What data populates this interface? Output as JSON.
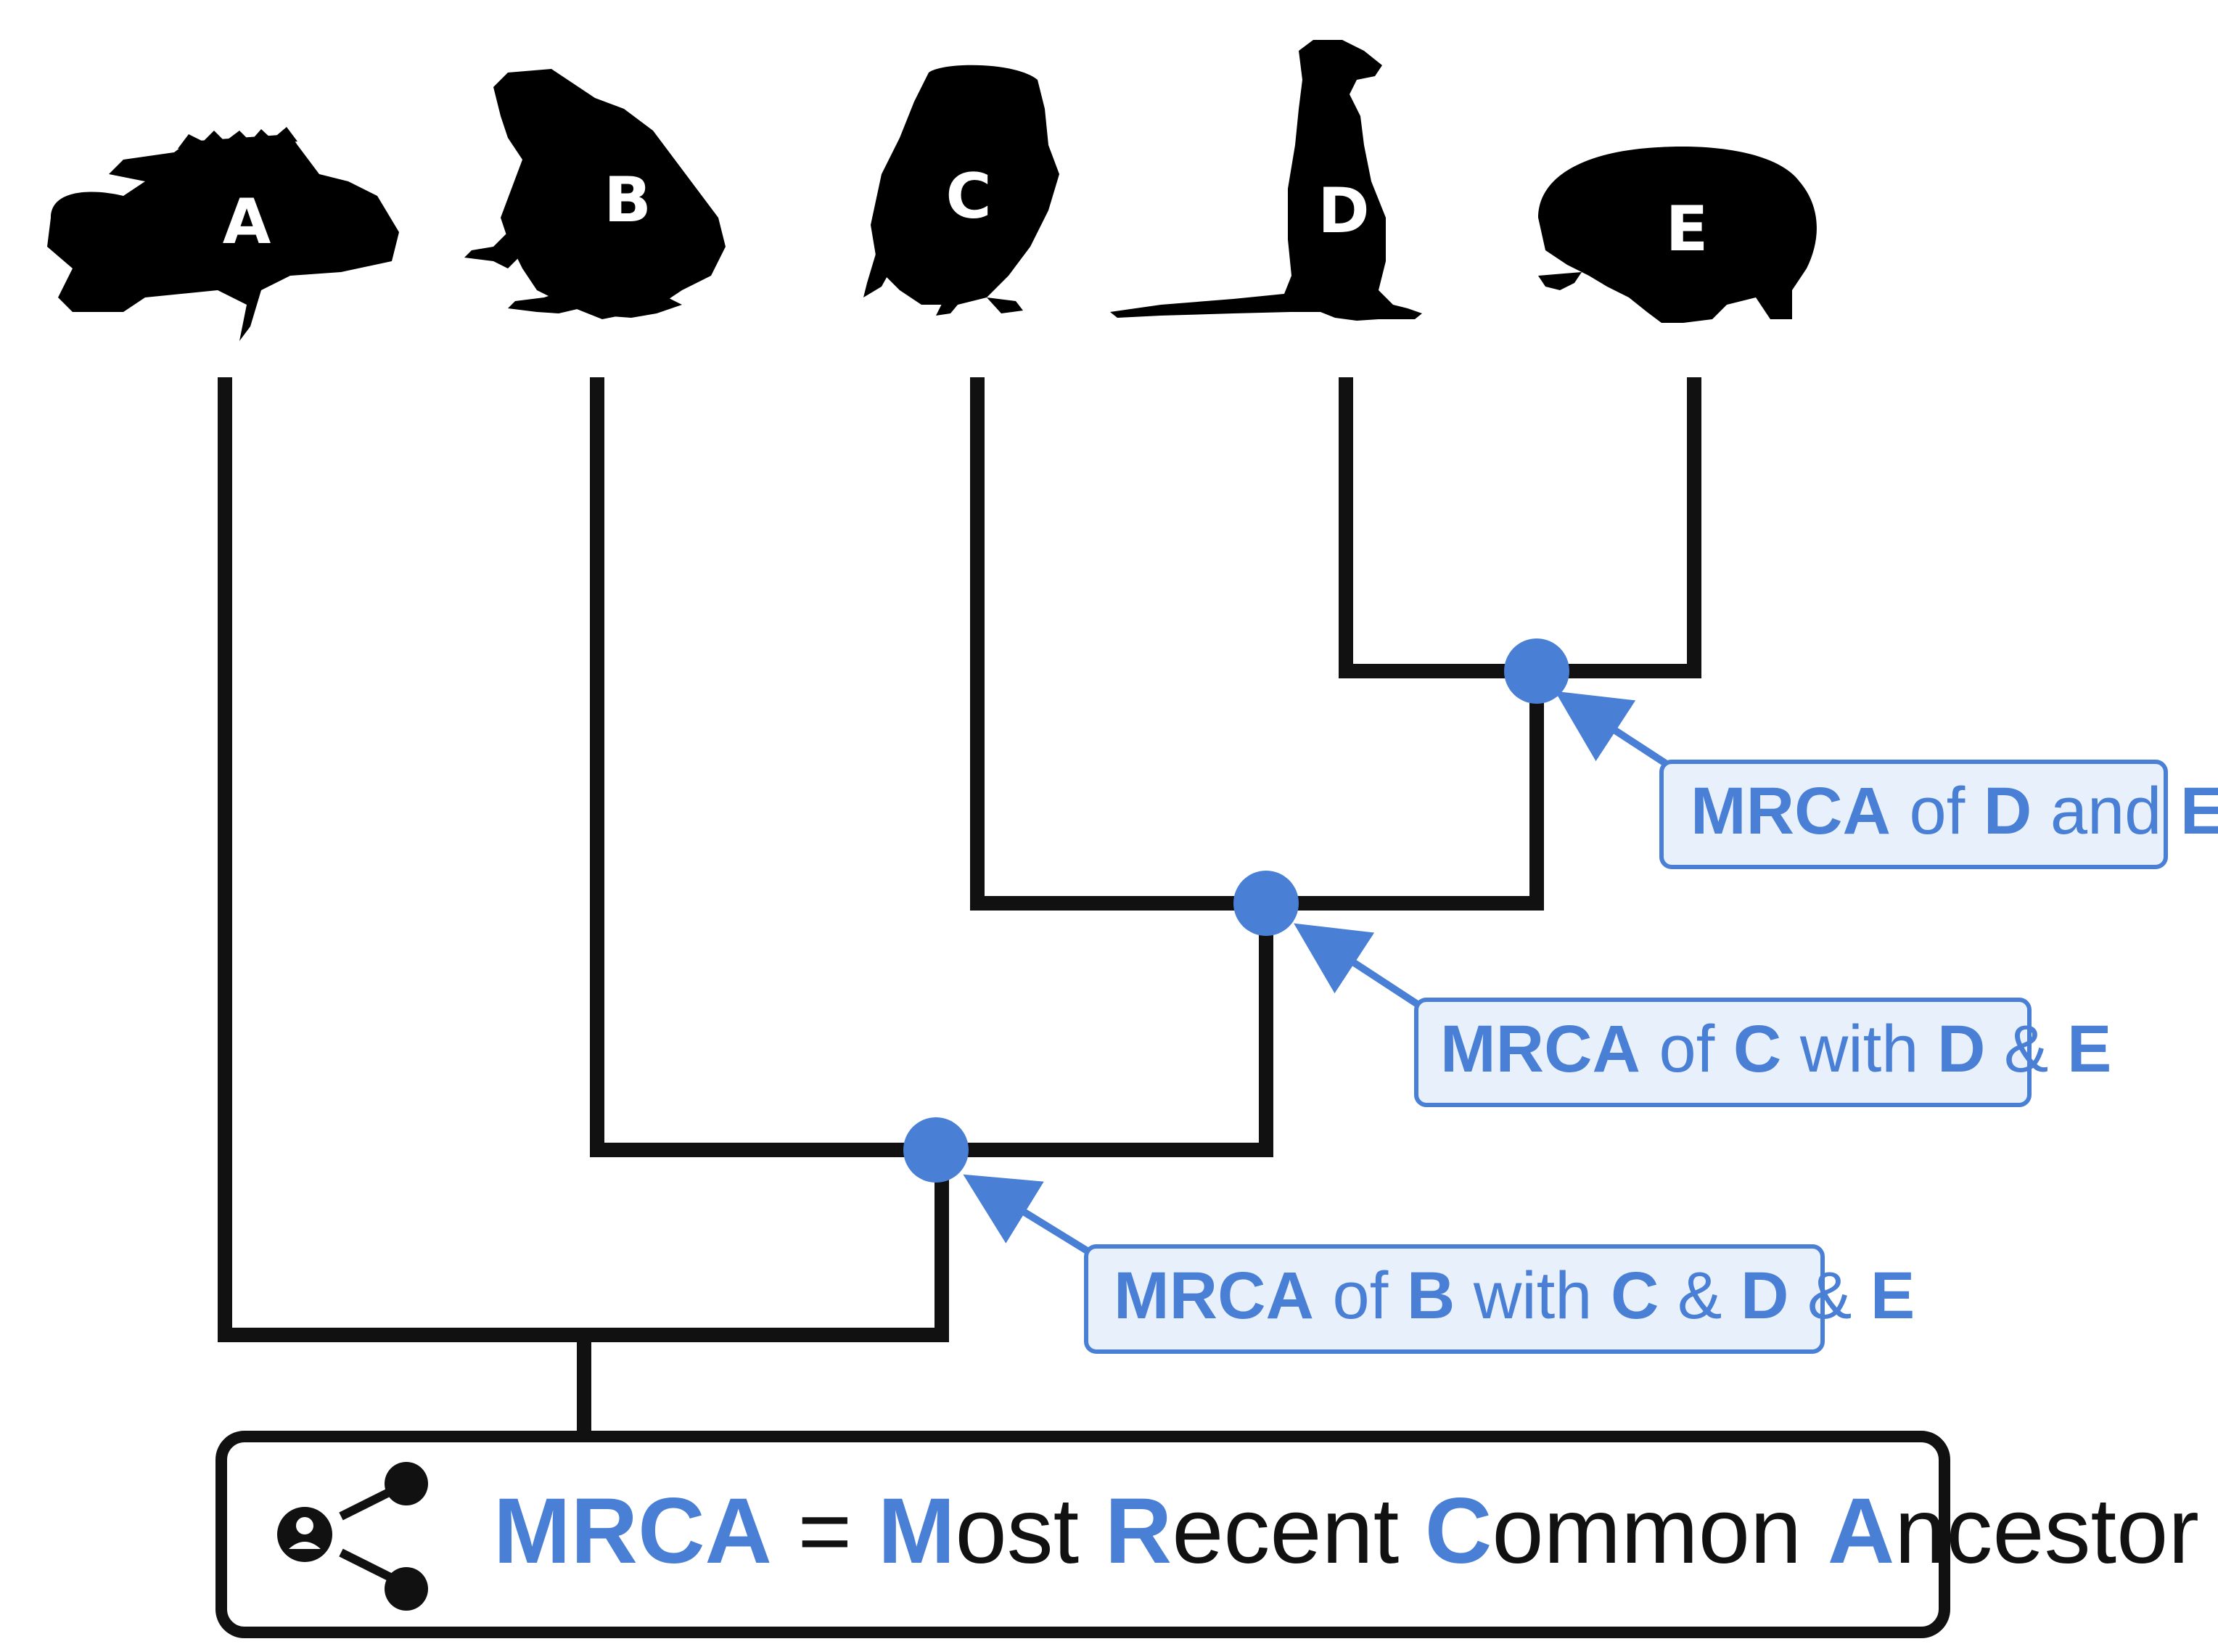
{
  "taxa": [
    {
      "label": "A",
      "icon": "fish-silhouette-icon"
    },
    {
      "label": "B",
      "icon": "frog-silhouette-icon"
    },
    {
      "label": "C",
      "icon": "owl-silhouette-icon"
    },
    {
      "label": "D",
      "icon": "meerkat-silhouette-icon"
    },
    {
      "label": "E",
      "icon": "hedgehog-silhouette-icon"
    }
  ],
  "annotations": {
    "de": {
      "parts": [
        {
          "t": "MRCA",
          "b": true
        },
        {
          "t": " of ",
          "b": false
        },
        {
          "t": "D",
          "b": true
        },
        {
          "t": " and ",
          "b": false
        },
        {
          "t": "E",
          "b": true
        }
      ]
    },
    "cde": {
      "parts": [
        {
          "t": "MRCA",
          "b": true
        },
        {
          "t": " of ",
          "b": false
        },
        {
          "t": "C",
          "b": true
        },
        {
          "t": " with ",
          "b": false
        },
        {
          "t": "D",
          "b": true
        },
        {
          "t": " & ",
          "b": false
        },
        {
          "t": "E",
          "b": true
        }
      ]
    },
    "bcde": {
      "parts": [
        {
          "t": "MRCA",
          "b": true
        },
        {
          "t": " of ",
          "b": false
        },
        {
          "t": "B",
          "b": true
        },
        {
          "t": " with ",
          "b": false
        },
        {
          "t": "C",
          "b": true
        },
        {
          "t": " & ",
          "b": false
        },
        {
          "t": "D",
          "b": true
        },
        {
          "t": " & ",
          "b": false
        },
        {
          "t": "E",
          "b": true
        }
      ]
    }
  },
  "legend": {
    "icon": "share-person-network-icon",
    "parts": [
      {
        "t": "MRCA",
        "acc": true
      },
      {
        "t": " = ",
        "acc": false
      },
      {
        "t": "M",
        "acc": true
      },
      {
        "t": "ost ",
        "acc": false
      },
      {
        "t": "R",
        "acc": true
      },
      {
        "t": "ecent ",
        "acc": false
      },
      {
        "t": "C",
        "acc": true
      },
      {
        "t": "ommon ",
        "acc": false
      },
      {
        "t": "A",
        "acc": true
      },
      {
        "t": "ncestor",
        "acc": false
      }
    ]
  },
  "colors": {
    "accent": "#4a7fd6",
    "box_fill": "#e8f1fb",
    "line": "#111111"
  }
}
